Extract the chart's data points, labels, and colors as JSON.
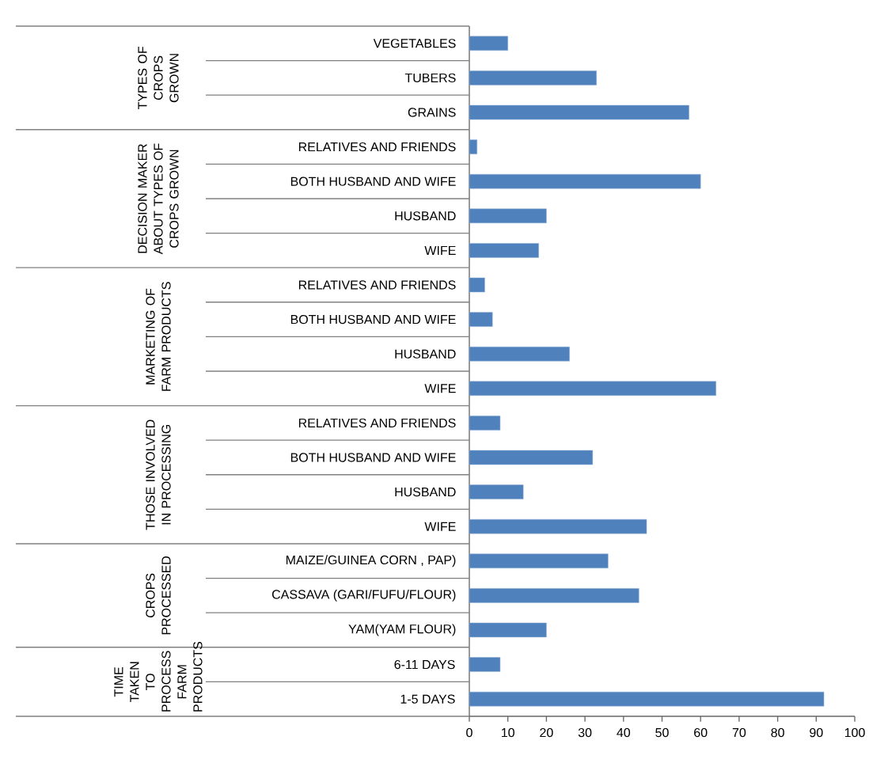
{
  "chart_data": [
    {
      "type": "bar",
      "orientation": "horizontal",
      "ylabel": "TYPES OF CROPS GROWN",
      "categories": [
        "VEGETABLES",
        "TUBERS",
        "GRAINS"
      ],
      "values": [
        10,
        33,
        57
      ],
      "color": "#4f81bd",
      "xlim": [
        0,
        100
      ],
      "tick_labels": "y"
    },
    {
      "type": "bar",
      "orientation": "horizontal",
      "ylabel": "DECISION MAKER ABOUT TYPES OF CROPS GROWN",
      "categories": [
        "RELATIVES AND FRIENDS",
        "BOTH HUSBAND AND WIFE",
        "HUSBAND",
        "WIFE"
      ],
      "values": [
        2,
        60,
        20,
        18
      ],
      "color": "#4f81bd",
      "xlim": [
        0,
        100
      ],
      "tick_labels": "y"
    },
    {
      "type": "bar",
      "orientation": "horizontal",
      "ylabel": "MARKETING OF FARM PRODUCTS",
      "categories": [
        "RELATIVES AND FRIENDS",
        "BOTH HUSBAND AND WIFE",
        "HUSBAND",
        "WIFE"
      ],
      "values": [
        4,
        6,
        26,
        64
      ],
      "color": "#4f81bd",
      "xlim": [
        0,
        100
      ],
      "tick_labels": "y"
    },
    {
      "type": "bar",
      "orientation": "horizontal",
      "ylabel": "THOSE INVOLVED IN PROCESSING",
      "categories": [
        "RELATIVES AND FRIENDS",
        "BOTH HUSBAND AND WIFE",
        "HUSBAND",
        "WIFE"
      ],
      "values": [
        8,
        32,
        14,
        46
      ],
      "color": "#4f81bd",
      "xlim": [
        0,
        100
      ],
      "tick_labels": "y"
    },
    {
      "type": "bar",
      "orientation": "horizontal",
      "ylabel": "CROPS PROCESSED",
      "categories": [
        "MAIZE/GUINEA CORN , PAP)",
        "CASSAVA (GARI/FUFU/FLOUR)",
        "YAM(YAM FLOUR)"
      ],
      "values": [
        36,
        44,
        20
      ],
      "color": "#4f81bd",
      "xlim": [
        0,
        100
      ],
      "tick_labels": "y"
    },
    {
      "type": "bar",
      "orientation": "horizontal",
      "ylabel": "TIME TAKEN TO PROCESS FARM PRODUCTS",
      "categories": [
        "6-11 DAYS",
        "1-5 DAYS"
      ],
      "values": [
        8,
        92
      ],
      "color": "#4f81bd",
      "xlim": [
        0,
        100
      ],
      "xticks": [
        0,
        10,
        20,
        30,
        40,
        50,
        60,
        70,
        80,
        90,
        100
      ]
    }
  ]
}
